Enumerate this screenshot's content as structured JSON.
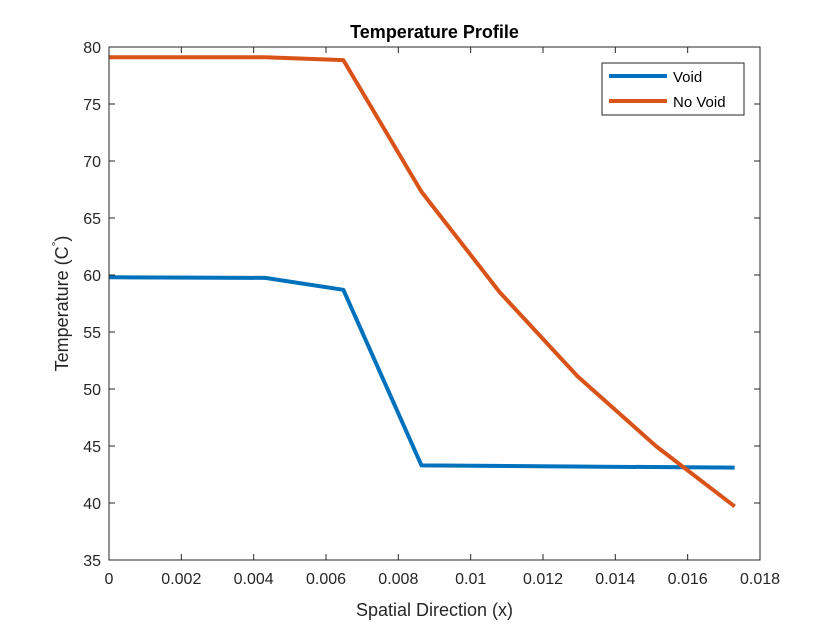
{
  "chart_data": {
    "type": "line",
    "title": "Temperature Profile",
    "xlabel": "Spatial Direction (x)",
    "ylabel": "Temperature (C",
    "ylabel_superscript": "°",
    "ylabel_suffix": ")",
    "xlim": [
      0,
      0.018
    ],
    "ylim": [
      35,
      80
    ],
    "xticks": [
      0,
      0.002,
      0.004,
      0.006,
      0.008,
      0.01,
      0.012,
      0.014,
      0.016,
      0.018
    ],
    "xtick_labels": [
      "0",
      "0.002",
      "0.004",
      "0.006",
      "0.008",
      "0.01",
      "0.012",
      "0.014",
      "0.016",
      "0.018"
    ],
    "yticks": [
      35,
      40,
      45,
      50,
      55,
      60,
      65,
      70,
      75,
      80
    ],
    "ytick_labels": [
      "35",
      "40",
      "45",
      "50",
      "55",
      "60",
      "65",
      "70",
      "75",
      "80"
    ],
    "grid": false,
    "legend_position": "top-right",
    "series": [
      {
        "name": "Void",
        "color": "#0072BD",
        "x": [
          0,
          0.00432,
          0.00648,
          0.00864,
          0.0173
        ],
        "y": [
          59.8,
          59.75,
          58.7,
          43.3,
          43.1
        ]
      },
      {
        "name": "No Void",
        "color": "#D95319",
        "x": [
          0,
          0.00432,
          0.00648,
          0.00864,
          0.0108,
          0.01296,
          0.01512,
          0.0173
        ],
        "y": [
          79.1,
          79.1,
          78.85,
          67.3,
          58.5,
          51.1,
          45.0,
          39.7
        ]
      }
    ]
  }
}
